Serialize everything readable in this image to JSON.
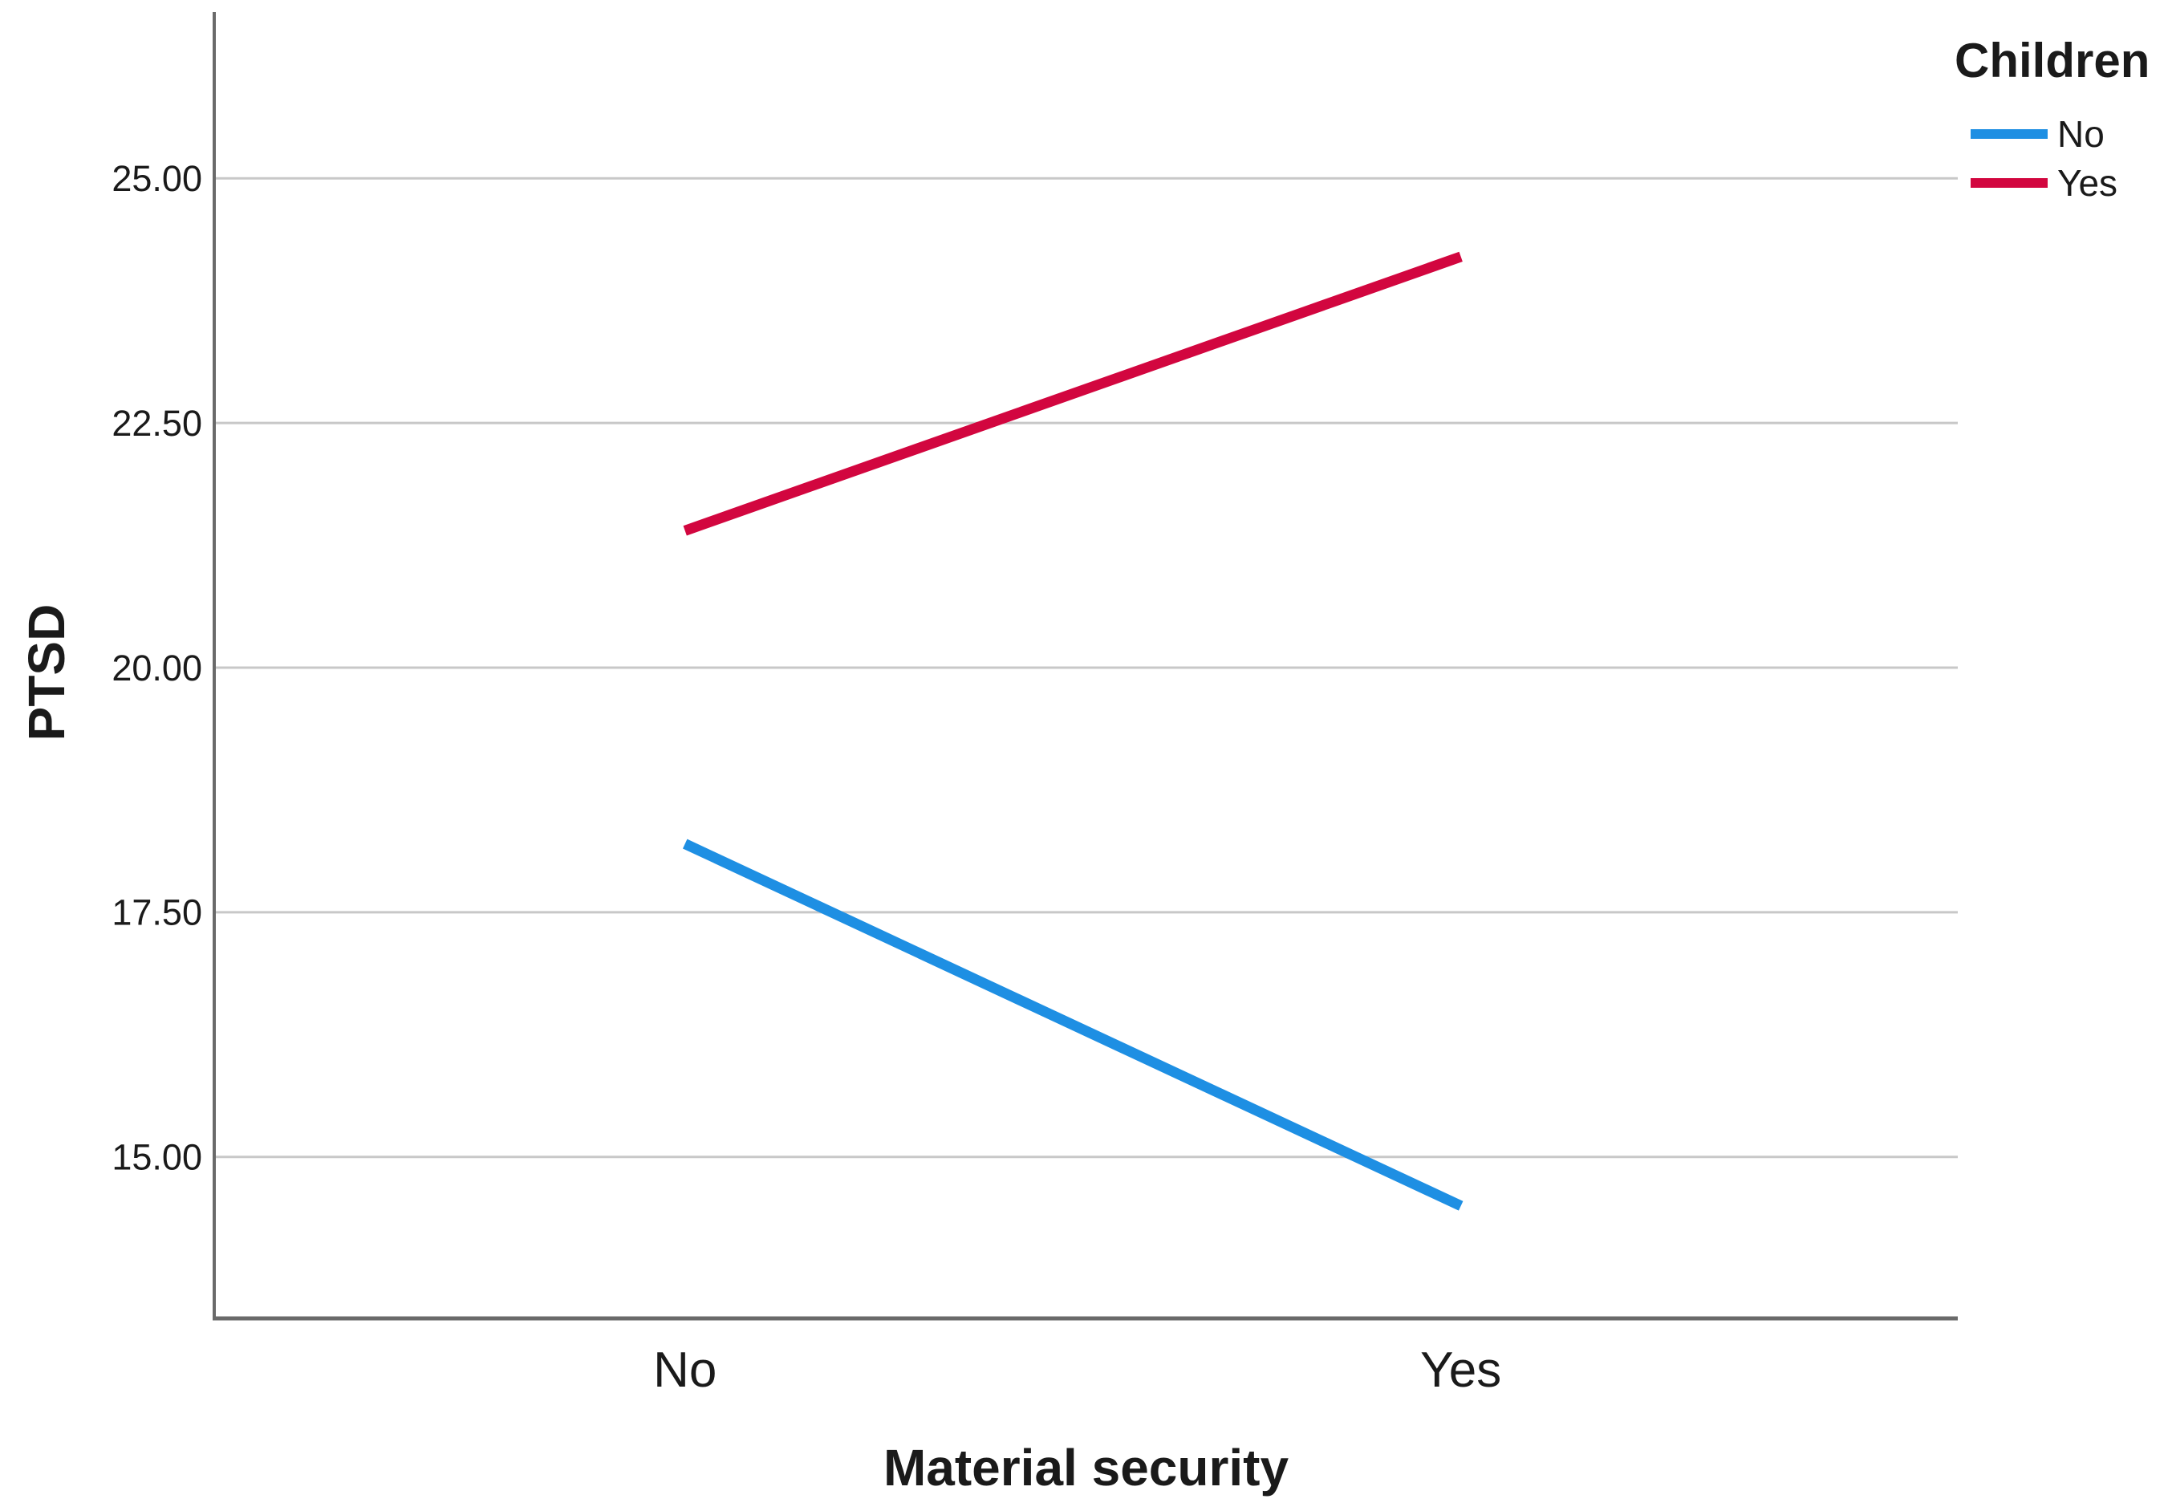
{
  "chart_data": {
    "type": "line",
    "title": "",
    "xlabel": "Material security",
    "ylabel": "PTSD",
    "categories": [
      "No",
      "Yes"
    ],
    "series": [
      {
        "name": "No",
        "color": "#1E8FE3",
        "values": [
          18.2,
          14.5
        ]
      },
      {
        "name": "Yes",
        "color": "#D2063F",
        "values": [
          21.4,
          24.2
        ]
      }
    ],
    "legend_title": "Children",
    "legend_position": "top-right",
    "yticks": [
      15.0,
      17.5,
      20.0,
      22.5,
      25.0
    ],
    "ytick_labels": [
      "15.00",
      "17.50",
      "20.00",
      "22.50",
      "25.00"
    ],
    "ylim": [
      13.35,
      26.7
    ],
    "grid": "horizontal",
    "theme": {
      "background": "#FFFFFF",
      "axis_color": "#6A6A6A",
      "gridline_color": "#C8C8C8",
      "text_color": "#1A1A1A"
    }
  }
}
